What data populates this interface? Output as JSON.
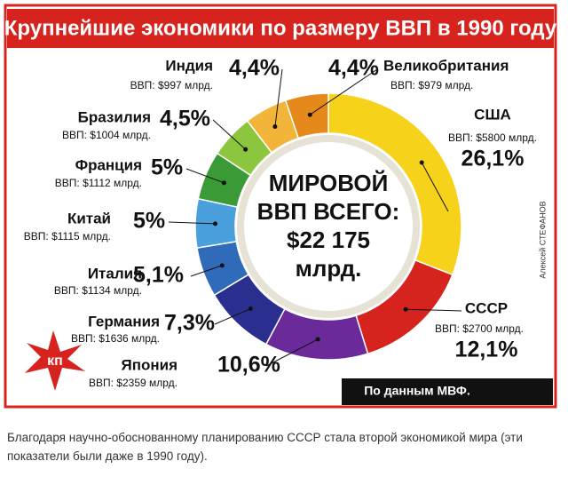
{
  "chart_data": {
    "type": "pie",
    "title": "Крупнейшие экономики по размеру ВВП в 1990 году",
    "categories": [
      "США",
      "СССР",
      "Япония",
      "Германия",
      "Италия",
      "Китай",
      "Франция",
      "Бразилия",
      "Индия",
      "Великобритания"
    ],
    "values": [
      26.1,
      12.1,
      10.6,
      7.3,
      5.1,
      5,
      5,
      4.5,
      4.4,
      4.4
    ],
    "value_labels": [
      "26,1%",
      "12,1%",
      "10,6%",
      "7,3%",
      "5,1%",
      "5%",
      "5%",
      "4,5%",
      "4,4%",
      "4,4%"
    ],
    "gdp_labels": [
      "ВВП: $5800 млрд.",
      "ВВП: $2700 млрд.",
      "ВВП: $2359 млрд.",
      "ВВП: $1636 млрд.",
      "ВВП: $1134 млрд.",
      "ВВП: $1115 млрд.",
      "ВВП: $1112 млрд.",
      "ВВП: $1004 млрд.",
      "ВВП: $997 млрд.",
      "ВВП: $979 млрд."
    ],
    "colors": [
      "#f6d21a",
      "#d7231e",
      "#6a2a9a",
      "#2a2f8f",
      "#2f6bb8",
      "#4aa0dc",
      "#3a9a35",
      "#8cc63f",
      "#f2b53a",
      "#e58a1a"
    ],
    "center_text": [
      "МИРОВОЙ",
      "ВВП ВСЕГО:",
      "$22 175",
      "млрд."
    ],
    "source": "По данным МВФ.",
    "author": "Алексей СТЕФАНОВ",
    "logo": "кп"
  },
  "caption": "Благодаря научно-обоснованному планированию СССР стала второй экономикой мира (эти показатели были даже в 1990 году)."
}
